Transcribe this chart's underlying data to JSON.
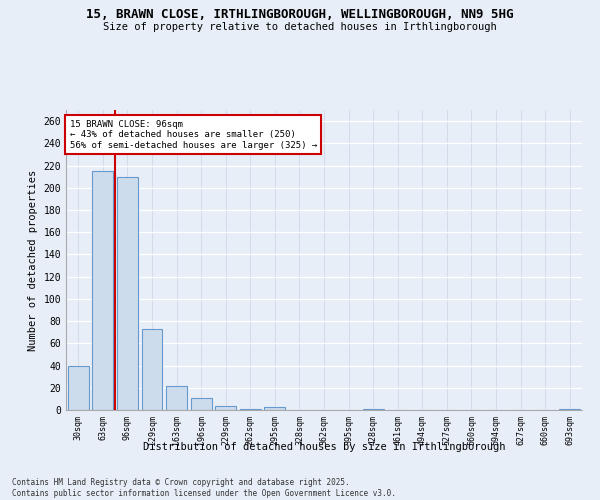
{
  "title_line1": "15, BRAWN CLOSE, IRTHLINGBOROUGH, WELLINGBOROUGH, NN9 5HG",
  "title_line2": "Size of property relative to detached houses in Irthlingborough",
  "xlabel": "Distribution of detached houses by size in Irthlingborough",
  "ylabel": "Number of detached properties",
  "categories": [
    "30sqm",
    "63sqm",
    "96sqm",
    "129sqm",
    "163sqm",
    "196sqm",
    "229sqm",
    "262sqm",
    "295sqm",
    "328sqm",
    "362sqm",
    "395sqm",
    "428sqm",
    "461sqm",
    "494sqm",
    "527sqm",
    "560sqm",
    "594sqm",
    "627sqm",
    "660sqm",
    "693sqm"
  ],
  "values": [
    40,
    215,
    210,
    73,
    22,
    11,
    4,
    1,
    3,
    0,
    0,
    0,
    1,
    0,
    0,
    0,
    0,
    0,
    0,
    0,
    1
  ],
  "bar_color": "#ccdcec",
  "bar_edge_color": "#6699cc",
  "red_line_x": 1.5,
  "annotation_text_line1": "15 BRAWN CLOSE: 96sqm",
  "annotation_text_line2": "← 43% of detached houses are smaller (250)",
  "annotation_text_line3": "56% of semi-detached houses are larger (325) →",
  "annotation_box_color": "#ffffff",
  "annotation_box_edge_color": "#cc0000",
  "ylim": [
    0,
    270
  ],
  "yticks": [
    0,
    20,
    40,
    60,
    80,
    100,
    120,
    140,
    160,
    180,
    200,
    220,
    240,
    260
  ],
  "bg_color": "#e8eef8",
  "grid_color": "#d0d8e8",
  "footer_line1": "Contains HM Land Registry data © Crown copyright and database right 2025.",
  "footer_line2": "Contains public sector information licensed under the Open Government Licence v3.0."
}
